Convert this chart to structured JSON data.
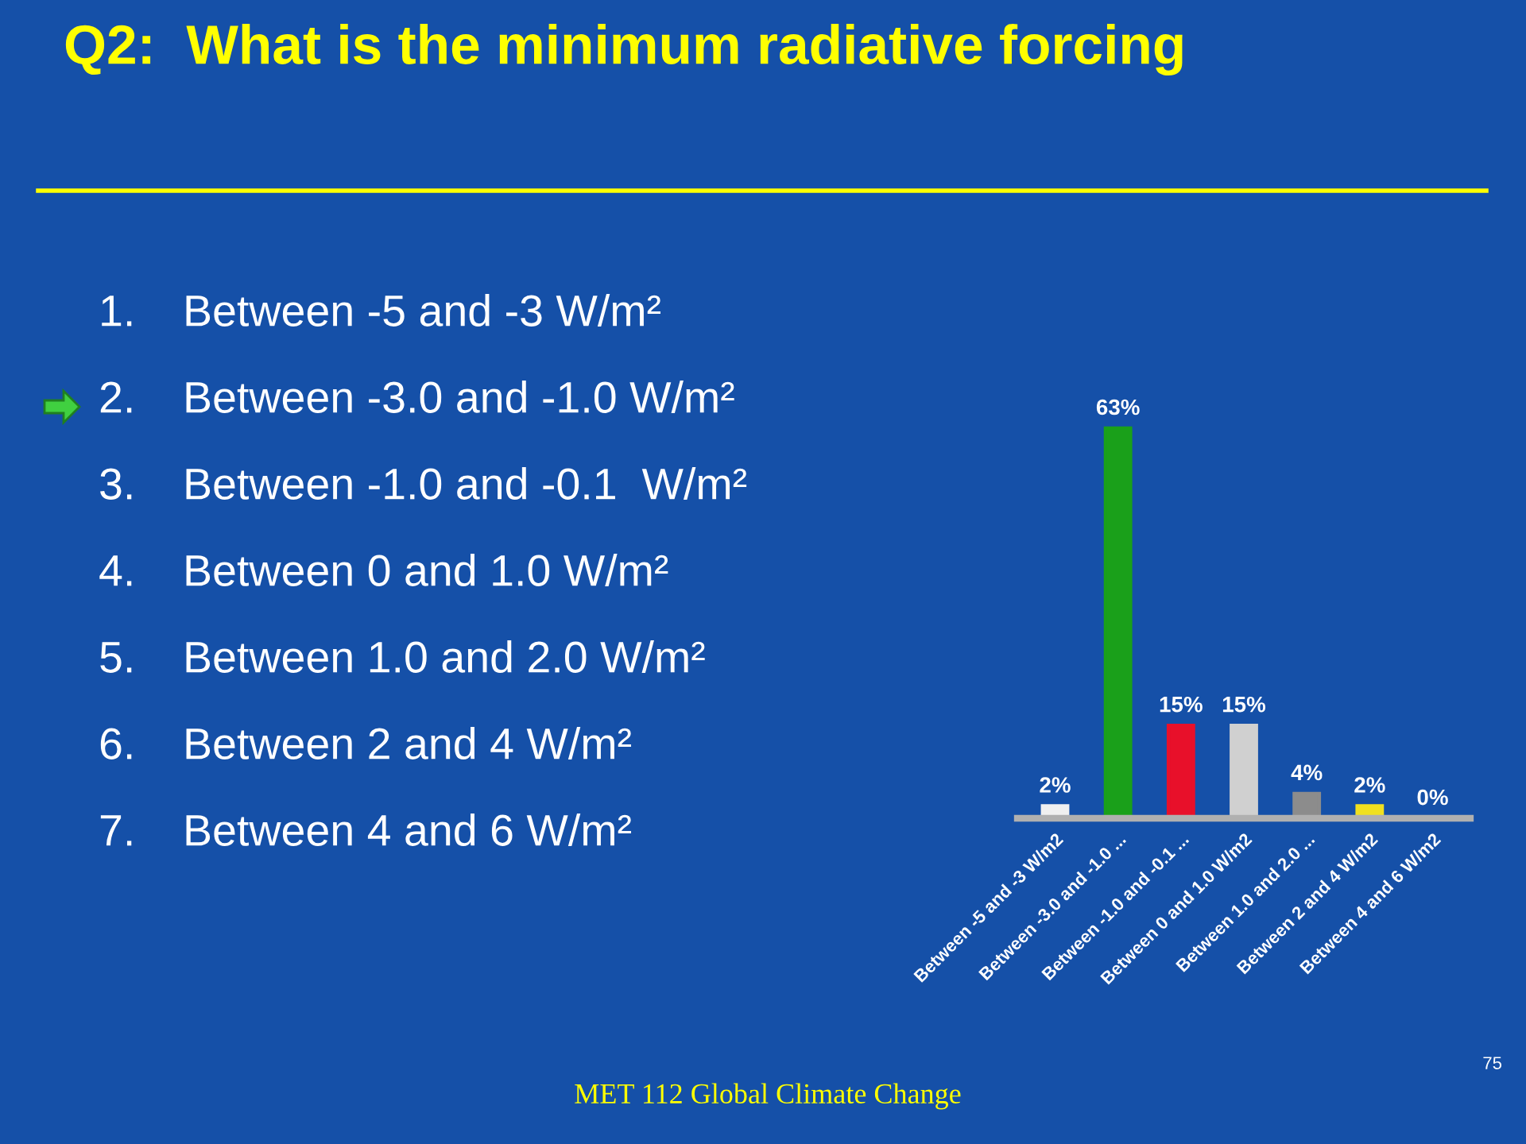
{
  "chart_data": {
    "type": "bar",
    "title": "Q2:  What is the minimum radiative forcing",
    "categories": [
      "Between -5 and -3 W/m2",
      "Between -3.0 and -1.0 ...",
      "Between -1.0 and -0.1 ...",
      "Between 0 and 1.0 W/m2",
      "Between 1.0 and 2.0 ...",
      "Between 2 and 4 W/m2",
      "Between 4 and 6 W/m2"
    ],
    "values": [
      2,
      63,
      15,
      15,
      4,
      2,
      0
    ],
    "value_labels": [
      "2%",
      "63%",
      "15%",
      "15%",
      "4%",
      "2%",
      "0%"
    ],
    "colors": [
      "#f0f0f0",
      "#1aa01a",
      "#e8102a",
      "#d0d0d0",
      "#8c8c8c",
      "#f0e020",
      "#2040c0"
    ],
    "annotations": [
      "1.  Between -5 and -3 W/m²",
      "2.  Between -3.0 and -1.0 W/m²",
      "3.  Between -1.0 and -0.1  W/m²",
      "4.  Between 0 and 1.0 W/m²",
      "5.  Between 1.0 and 2.0 W/m²",
      "6.  Between 2 and 4 W/m²",
      "7.  Between 4 and 6 W/m²",
      "75",
      "MET 112 Global Climate Change"
    ],
    "grid": false,
    "legend": false
  }
}
